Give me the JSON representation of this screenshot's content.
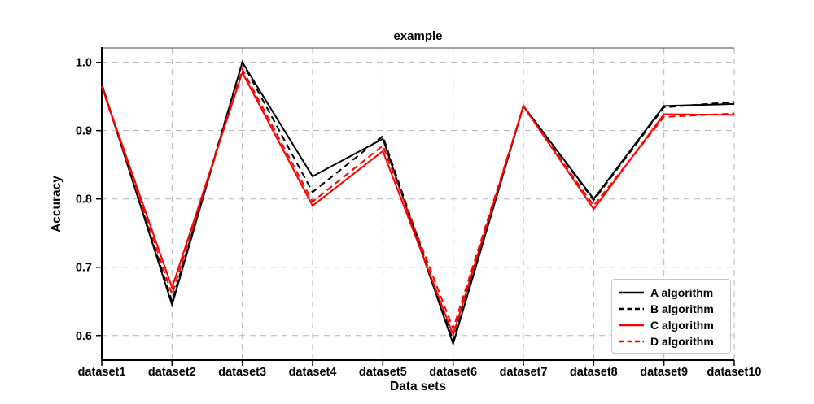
{
  "figure": {
    "background": "#ffffff"
  },
  "chart_data": {
    "type": "line",
    "title": "example",
    "xlabel": "Data sets",
    "ylabel": "Accuracy",
    "categories": [
      "dataset1",
      "dataset2",
      "dataset3",
      "dataset4",
      "dataset5",
      "dataset6",
      "dataset7",
      "dataset8",
      "dataset9",
      "dataset10"
    ],
    "yticks": [
      0.6,
      0.7,
      0.8,
      0.9,
      1.0
    ],
    "ytick_labels": [
      "0.6",
      "0.7",
      "0.8",
      "0.9",
      "1.0"
    ],
    "ylim": [
      0.564,
      1.021
    ],
    "grid": true,
    "grid_style": "dashed",
    "grid_color": "#b3b3b3",
    "legend_position": "lower right",
    "series": [
      {
        "name": "A algorithm",
        "color": "#000000",
        "style": "solid",
        "values": [
          0.968,
          0.645,
          1.0,
          0.833,
          0.888,
          0.588,
          0.936,
          0.8,
          0.936,
          0.939
        ]
      },
      {
        "name": "B algorithm",
        "color": "#000000",
        "style": "dashed",
        "values": [
          0.968,
          0.65,
          1.0,
          0.81,
          0.892,
          0.592,
          0.936,
          0.798,
          0.934,
          0.942
        ]
      },
      {
        "name": "C algorithm",
        "color": "#ff0000",
        "style": "solid",
        "values": [
          0.965,
          0.67,
          0.985,
          0.79,
          0.87,
          0.601,
          0.936,
          0.785,
          0.924,
          0.923
        ]
      },
      {
        "name": "D algorithm",
        "color": "#ff0000",
        "style": "dashed",
        "values": [
          0.964,
          0.66,
          0.99,
          0.796,
          0.878,
          0.61,
          0.935,
          0.79,
          0.92,
          0.925
        ]
      }
    ]
  }
}
